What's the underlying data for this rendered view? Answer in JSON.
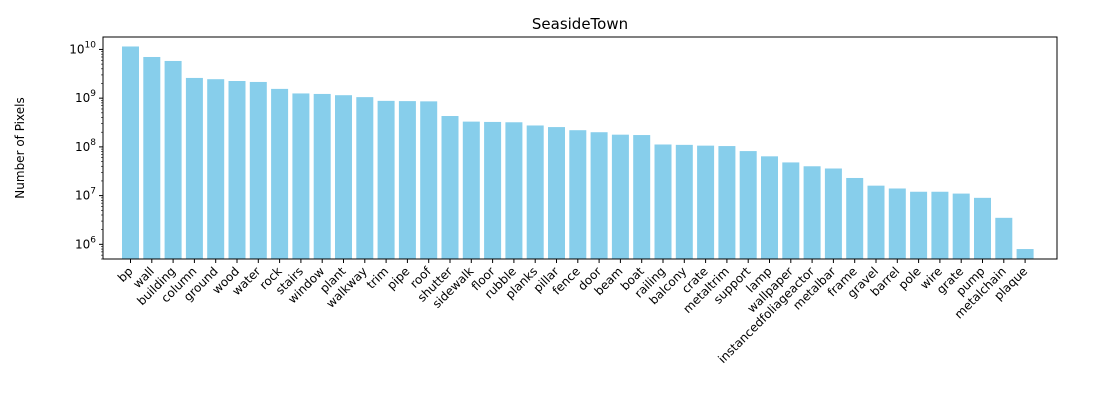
{
  "chart_data": {
    "type": "bar",
    "title": "SeasideTown",
    "xlabel": "",
    "ylabel": "Number of Pixels",
    "yscale": "log",
    "ylim": [
      500000,
      18000000000
    ],
    "y_ticks": [
      {
        "value": 1000000,
        "mantissa": "10",
        "exponent": "6"
      },
      {
        "value": 10000000,
        "mantissa": "10",
        "exponent": "7"
      },
      {
        "value": 100000000,
        "mantissa": "10",
        "exponent": "8"
      },
      {
        "value": 1000000000,
        "mantissa": "10",
        "exponent": "9"
      },
      {
        "value": 10000000000,
        "mantissa": "10",
        "exponent": "10"
      }
    ],
    "bar_color": "#87ceeb",
    "grid": false,
    "categories": [
      "bp",
      "wall",
      "building",
      "column",
      "ground",
      "wood",
      "water",
      "rock",
      "stairs",
      "window",
      "plant",
      "walkway",
      "trim",
      "pipe",
      "roof",
      "shutter",
      "sidewalk",
      "floor",
      "rubble",
      "planks",
      "pillar",
      "fence",
      "door",
      "beam",
      "boat",
      "railing",
      "balcony",
      "crate",
      "metaltrim",
      "support",
      "lamp",
      "wallpaper",
      "instancedfoliageactor",
      "metalbar",
      "frame",
      "gravel",
      "barrel",
      "pole",
      "wire",
      "grate",
      "pump",
      "metalchain",
      "plaque"
    ],
    "values": [
      11500000000,
      7000000000,
      5800000000,
      2600000000,
      2450000000,
      2250000000,
      2150000000,
      1550000000,
      1250000000,
      1220000000,
      1150000000,
      1050000000,
      880000000,
      870000000,
      860000000,
      430000000,
      330000000,
      325000000,
      320000000,
      275000000,
      255000000,
      220000000,
      200000000,
      178000000,
      175000000,
      112000000,
      110000000,
      106000000,
      104000000,
      82000000,
      64000000,
      48000000,
      40000000,
      36000000,
      23000000,
      16000000,
      14000000,
      12000000,
      12000000,
      11000000,
      9000000,
      3500000,
      800000
    ]
  }
}
